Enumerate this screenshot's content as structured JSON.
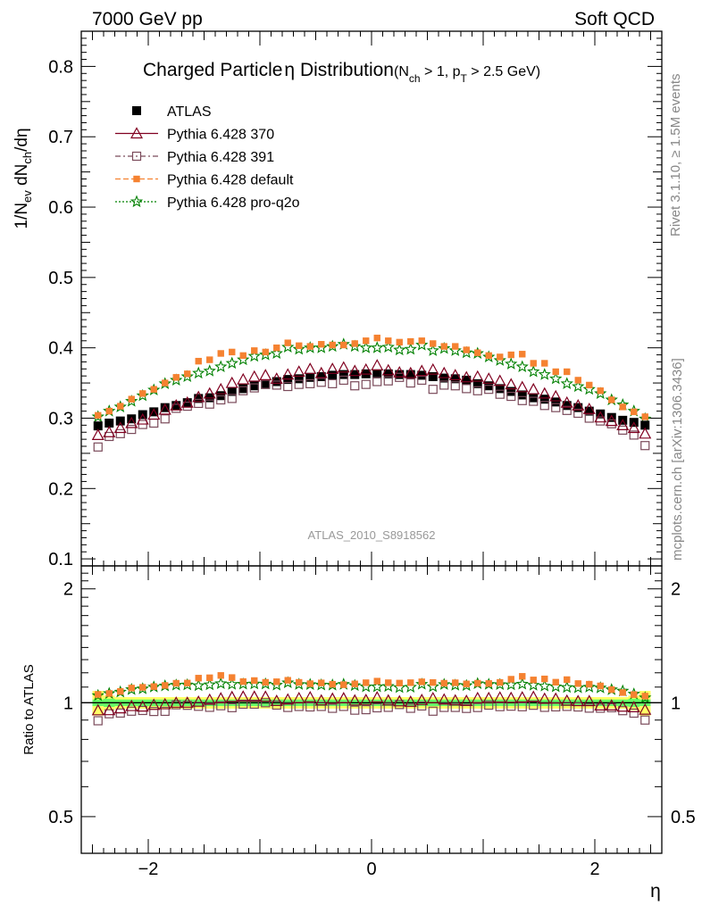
{
  "header": {
    "left": "7000 GeV pp",
    "right": "Soft QCD"
  },
  "side": {
    "rivet": "Rivet 3.1.10, ≥ 1.5M events",
    "mcplots": "mcplots.cern.ch [arXiv:1306.3436]"
  },
  "colors": {
    "atlas": "#000000",
    "p370": "#800020",
    "p391": "#7a4a5a",
    "pdefault": "#f58231",
    "proq2o": "#008000",
    "band_yellow": "#ffff66",
    "band_green": "#66ff66"
  },
  "chart_data": [
    {
      "type": "scatter",
      "title_main": "Charged Particle",
      "title_eta": "η",
      "title_tail": " Distribution",
      "title_cond_open": "(N",
      "title_cond_sub1": "ch",
      "title_cond_mid": " > 1, p",
      "title_cond_sub2": "T",
      "title_cond_close": " > 2.5 GeV)",
      "ylabel_pre": "1/N",
      "ylabel_sub1": "ev",
      "ylabel_mid": " dN",
      "ylabel_sub2": "ch",
      "ylabel_post": "/dη",
      "xlim": [
        -2.6,
        2.6
      ],
      "ylim": [
        0.09,
        0.85
      ],
      "yticks": [
        "0.1",
        "0.2",
        "0.3",
        "0.4",
        "0.5",
        "0.6",
        "0.7",
        "0.8"
      ],
      "watermark": "ATLAS_2010_S8918562",
      "legend_position": "top-left",
      "eta": [
        -2.45,
        -2.35,
        -2.25,
        -2.15,
        -2.05,
        -1.95,
        -1.85,
        -1.75,
        -1.65,
        -1.55,
        -1.45,
        -1.35,
        -1.25,
        -1.15,
        -1.05,
        -0.95,
        -0.85,
        -0.75,
        -0.65,
        -0.55,
        -0.45,
        -0.35,
        -0.25,
        -0.15,
        -0.05,
        0.05,
        0.15,
        0.25,
        0.35,
        0.45,
        0.55,
        0.65,
        0.75,
        0.85,
        0.95,
        1.05,
        1.15,
        1.25,
        1.35,
        1.45,
        1.55,
        1.65,
        1.75,
        1.85,
        1.95,
        2.05,
        2.15,
        2.25,
        2.35,
        2.45
      ],
      "series": [
        {
          "name": "ATLAS",
          "marker": "filled-square",
          "values": [
            0.289,
            0.293,
            0.296,
            0.299,
            0.305,
            0.309,
            0.315,
            0.318,
            0.322,
            0.328,
            0.329,
            0.332,
            0.338,
            0.342,
            0.346,
            0.348,
            0.352,
            0.355,
            0.356,
            0.358,
            0.359,
            0.361,
            0.362,
            0.362,
            0.363,
            0.363,
            0.363,
            0.362,
            0.362,
            0.361,
            0.359,
            0.357,
            0.356,
            0.354,
            0.349,
            0.346,
            0.342,
            0.338,
            0.333,
            0.329,
            0.327,
            0.323,
            0.318,
            0.315,
            0.31,
            0.306,
            0.301,
            0.297,
            0.294,
            0.29
          ]
        },
        {
          "name": "Pythia 6.428 370",
          "marker": "open-triangle",
          "values": [
            0.276,
            0.28,
            0.286,
            0.293,
            0.298,
            0.305,
            0.312,
            0.318,
            0.322,
            0.33,
            0.335,
            0.341,
            0.35,
            0.355,
            0.359,
            0.361,
            0.356,
            0.362,
            0.366,
            0.37,
            0.364,
            0.37,
            0.372,
            0.367,
            0.369,
            0.375,
            0.368,
            0.365,
            0.364,
            0.367,
            0.369,
            0.364,
            0.361,
            0.358,
            0.359,
            0.356,
            0.353,
            0.348,
            0.344,
            0.341,
            0.335,
            0.331,
            0.322,
            0.318,
            0.313,
            0.301,
            0.296,
            0.29,
            0.286,
            0.278
          ]
        },
        {
          "name": "Pythia 6.428 391",
          "marker": "open-square",
          "values": [
            0.259,
            0.274,
            0.278,
            0.284,
            0.291,
            0.293,
            0.299,
            0.314,
            0.317,
            0.321,
            0.32,
            0.326,
            0.328,
            0.339,
            0.343,
            0.348,
            0.347,
            0.345,
            0.348,
            0.349,
            0.351,
            0.349,
            0.354,
            0.346,
            0.348,
            0.352,
            0.353,
            0.358,
            0.35,
            0.354,
            0.341,
            0.347,
            0.346,
            0.342,
            0.339,
            0.341,
            0.334,
            0.331,
            0.325,
            0.324,
            0.318,
            0.315,
            0.311,
            0.307,
            0.3,
            0.296,
            0.292,
            0.283,
            0.276,
            0.261
          ]
        },
        {
          "name": "Pythia 6.428 default",
          "marker": "filled-square-small",
          "values": [
            0.304,
            0.31,
            0.317,
            0.327,
            0.335,
            0.341,
            0.35,
            0.358,
            0.363,
            0.381,
            0.383,
            0.392,
            0.394,
            0.389,
            0.396,
            0.394,
            0.4,
            0.407,
            0.403,
            0.402,
            0.405,
            0.404,
            0.404,
            0.406,
            0.41,
            0.414,
            0.41,
            0.408,
            0.409,
            0.41,
            0.406,
            0.402,
            0.402,
            0.397,
            0.393,
            0.389,
            0.387,
            0.39,
            0.391,
            0.378,
            0.378,
            0.366,
            0.366,
            0.354,
            0.347,
            0.339,
            0.326,
            0.316,
            0.309,
            0.302
          ]
        },
        {
          "name": "Pythia 6.428 pro-q2o",
          "marker": "star",
          "values": [
            0.302,
            0.31,
            0.316,
            0.324,
            0.332,
            0.34,
            0.349,
            0.354,
            0.359,
            0.364,
            0.367,
            0.373,
            0.378,
            0.383,
            0.388,
            0.39,
            0.392,
            0.401,
            0.398,
            0.4,
            0.4,
            0.402,
            0.405,
            0.402,
            0.4,
            0.4,
            0.401,
            0.397,
            0.398,
            0.404,
            0.396,
            0.399,
            0.396,
            0.393,
            0.392,
            0.387,
            0.382,
            0.377,
            0.373,
            0.366,
            0.362,
            0.356,
            0.349,
            0.345,
            0.341,
            0.335,
            0.326,
            0.319,
            0.31,
            0.299
          ]
        }
      ]
    },
    {
      "type": "scatter",
      "ylabel": "Ratio to ATLAS",
      "xlabel": "η",
      "xlim": [
        -2.6,
        2.6
      ],
      "ylim": [
        0.4,
        2.3
      ],
      "log_y": true,
      "yticks": [
        "0.5",
        "1",
        "2"
      ],
      "xticks": [
        "−2",
        "0",
        "2"
      ],
      "band_edges_eta": [
        -2.5,
        -2.4,
        -2.3,
        2.3,
        2.4,
        2.5
      ],
      "band_yellow_halfwidth": [
        0.075,
        0.045,
        0.035,
        0.045,
        0.075
      ],
      "band_green_halfwidth": [
        0.02,
        0.025,
        0.02,
        0.025,
        0.02
      ],
      "reference_line": 1.0
    }
  ]
}
